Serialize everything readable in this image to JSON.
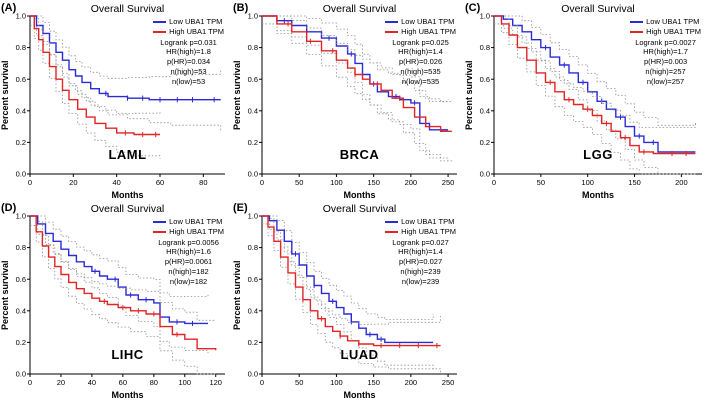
{
  "colors": {
    "low_line": "#2b2bd5",
    "high_line": "#e32424",
    "ci_line": "#909090",
    "axis": "#000000"
  },
  "chart_data": [
    {
      "type": "line",
      "subtype": "kaplan-meier-step",
      "panel_label": "(A)",
      "title": "Overall Survival",
      "cancer": "LAML",
      "xlabel": "Months",
      "ylabel": "Percent survival",
      "xlim": [
        0,
        90
      ],
      "xticks": [
        0,
        20,
        40,
        60,
        80
      ],
      "ylim": [
        0,
        1
      ],
      "yticks": [
        0,
        0.2,
        0.4,
        0.6,
        0.8,
        1
      ],
      "ci_base": 0.06,
      "ci_grow": 0.14,
      "legend_position": "top-right",
      "stats": [
        "Logrank p=0.031",
        "HR(high)=1.8",
        "p(HR)=0.034",
        "n(high)=53",
        "n(low)=53"
      ],
      "series": [
        {
          "name": "Low UBA1 TPM",
          "color_key": "low_line",
          "x": [
            0,
            3,
            6,
            9,
            12,
            15,
            18,
            21,
            24,
            28,
            32,
            36,
            45,
            55,
            65,
            88
          ],
          "y": [
            1.0,
            0.94,
            0.89,
            0.83,
            0.77,
            0.72,
            0.66,
            0.62,
            0.58,
            0.54,
            0.51,
            0.49,
            0.48,
            0.47,
            0.47,
            0.47
          ],
          "censors": [
            35,
            45,
            52,
            60,
            68,
            75,
            85
          ]
        },
        {
          "name": "High UBA1 TPM",
          "color_key": "high_line",
          "x": [
            0,
            2,
            4,
            6,
            9,
            12,
            15,
            18,
            22,
            26,
            30,
            35,
            40,
            48,
            60
          ],
          "y": [
            1.0,
            0.92,
            0.85,
            0.77,
            0.68,
            0.6,
            0.53,
            0.47,
            0.41,
            0.36,
            0.32,
            0.29,
            0.26,
            0.25,
            0.25
          ],
          "censors": [
            44,
            52,
            58
          ]
        }
      ]
    },
    {
      "type": "line",
      "subtype": "kaplan-meier-step",
      "panel_label": "(B)",
      "title": "Overall Survival",
      "cancer": "BRCA",
      "xlabel": "Months",
      "ylabel": "Percent survival",
      "xlim": [
        0,
        262
      ],
      "xticks": [
        0,
        50,
        100,
        150,
        200,
        250
      ],
      "ylim": [
        0,
        1
      ],
      "yticks": [
        0,
        0.2,
        0.4,
        0.6,
        0.8,
        1
      ],
      "ci_base": 0.05,
      "ci_grow": 0.15,
      "legend_position": "top-right",
      "stats": [
        "Logrank p=0.025",
        "HR(high)=1.4",
        "p(HR)=0.026",
        "n(high)=535",
        "n(low)=535"
      ],
      "series": [
        {
          "name": "Low UBA1 TPM",
          "color_key": "low_line",
          "x": [
            0,
            20,
            40,
            60,
            80,
            100,
            115,
            125,
            135,
            145,
            155,
            170,
            185,
            200,
            212,
            225,
            250
          ],
          "y": [
            1.0,
            0.97,
            0.94,
            0.9,
            0.86,
            0.81,
            0.76,
            0.7,
            0.63,
            0.57,
            0.52,
            0.49,
            0.47,
            0.45,
            0.32,
            0.28,
            0.28
          ],
          "censors": [
            30,
            60,
            90,
            120,
            150,
            180,
            205
          ]
        },
        {
          "name": "High UBA1 TPM",
          "color_key": "high_line",
          "x": [
            0,
            20,
            40,
            60,
            80,
            100,
            115,
            125,
            135,
            145,
            160,
            175,
            190,
            205,
            220,
            240,
            255
          ],
          "y": [
            1.0,
            0.95,
            0.9,
            0.84,
            0.78,
            0.72,
            0.67,
            0.63,
            0.6,
            0.57,
            0.53,
            0.48,
            0.42,
            0.36,
            0.3,
            0.27,
            0.27
          ],
          "censors": [
            35,
            65,
            95,
            125,
            155,
            185
          ]
        }
      ]
    },
    {
      "type": "line",
      "subtype": "kaplan-meier-step",
      "panel_label": "(C)",
      "title": "Overall Survival",
      "cancer": "LGG",
      "xlabel": "Months",
      "ylabel": "Percent survival",
      "xlim": [
        0,
        222
      ],
      "xticks": [
        0,
        50,
        100,
        150,
        200
      ],
      "ylim": [
        0,
        1
      ],
      "yticks": [
        0,
        0.2,
        0.4,
        0.6,
        0.8,
        1
      ],
      "ci_base": 0.05,
      "ci_grow": 0.15,
      "legend_position": "top-right",
      "stats": [
        "Logrank p=0.0027",
        "HR(high)=1.7",
        "p(HR)=0.003",
        "n(high)=257",
        "n(low)=257"
      ],
      "series": [
        {
          "name": "Low UBA1 TPM",
          "color_key": "low_line",
          "x": [
            0,
            10,
            20,
            30,
            40,
            50,
            60,
            70,
            80,
            90,
            100,
            110,
            120,
            130,
            140,
            150,
            160,
            175,
            215
          ],
          "y": [
            1.0,
            0.98,
            0.94,
            0.9,
            0.85,
            0.8,
            0.74,
            0.69,
            0.64,
            0.58,
            0.52,
            0.46,
            0.41,
            0.36,
            0.3,
            0.24,
            0.2,
            0.14,
            0.14
          ],
          "censors": [
            55,
            75,
            95,
            115,
            135,
            155,
            170
          ]
        },
        {
          "name": "High UBA1 TPM",
          "color_key": "high_line",
          "x": [
            0,
            8,
            16,
            25,
            35,
            45,
            55,
            65,
            75,
            85,
            95,
            105,
            115,
            125,
            135,
            145,
            155,
            170,
            215
          ],
          "y": [
            1.0,
            0.95,
            0.88,
            0.8,
            0.72,
            0.64,
            0.58,
            0.52,
            0.47,
            0.44,
            0.41,
            0.37,
            0.32,
            0.27,
            0.23,
            0.18,
            0.14,
            0.13,
            0.13
          ],
          "censors": [
            60,
            80,
            100,
            120,
            140,
            160,
            190,
            205
          ]
        }
      ]
    },
    {
      "type": "line",
      "subtype": "kaplan-meier-step",
      "panel_label": "(D)",
      "title": "Overall Survival",
      "cancer": "LIHC",
      "xlabel": "Months",
      "ylabel": "Percent survival",
      "xlim": [
        0,
        126
      ],
      "xticks": [
        0,
        20,
        40,
        60,
        80,
        100,
        120
      ],
      "ylim": [
        0,
        1
      ],
      "yticks": [
        0,
        0.2,
        0.4,
        0.6,
        0.8,
        1
      ],
      "ci_base": 0.06,
      "ci_grow": 0.14,
      "legend_position": "top-right",
      "stats": [
        "Logrank p=0.0056",
        "HR(high)=1.6",
        "p(HR)=0.0061",
        "n(high)=182",
        "n(low)=182"
      ],
      "series": [
        {
          "name": "Low UBA1 TPM",
          "color_key": "low_line",
          "x": [
            0,
            5,
            10,
            15,
            20,
            25,
            30,
            35,
            40,
            45,
            50,
            57,
            62,
            70,
            80,
            84,
            90,
            100,
            115
          ],
          "y": [
            1.0,
            0.95,
            0.89,
            0.84,
            0.79,
            0.75,
            0.71,
            0.68,
            0.65,
            0.62,
            0.6,
            0.55,
            0.5,
            0.47,
            0.45,
            0.36,
            0.33,
            0.32,
            0.32
          ],
          "censors": [
            42,
            55,
            65,
            75,
            95,
            105
          ]
        },
        {
          "name": "High UBA1 TPM",
          "color_key": "high_line",
          "x": [
            0,
            4,
            8,
            12,
            16,
            20,
            25,
            30,
            35,
            40,
            45,
            50,
            57,
            65,
            75,
            84,
            92,
            100,
            108,
            120
          ],
          "y": [
            1.0,
            0.9,
            0.81,
            0.74,
            0.68,
            0.63,
            0.58,
            0.54,
            0.51,
            0.48,
            0.46,
            0.44,
            0.42,
            0.4,
            0.38,
            0.3,
            0.25,
            0.22,
            0.16,
            0.15
          ],
          "censors": [
            48,
            60,
            70,
            80,
            95
          ]
        }
      ]
    },
    {
      "type": "line",
      "subtype": "kaplan-meier-step",
      "panel_label": "(E)",
      "title": "Overall Survival",
      "cancer": "LUAD",
      "xlabel": "Months",
      "ylabel": "Percent survival",
      "xlim": [
        0,
        262
      ],
      "xticks": [
        0,
        50,
        100,
        150,
        200,
        250
      ],
      "ylim": [
        0,
        1
      ],
      "yticks": [
        0,
        0.2,
        0.4,
        0.6,
        0.8,
        1
      ],
      "ci_base": 0.05,
      "ci_grow": 0.15,
      "legend_position": "top-right",
      "stats": [
        "Logrank p=0.027",
        "HR(high)=1.4",
        "p(HR)=0.027",
        "n(high)=239",
        "n(low)=239"
      ],
      "series": [
        {
          "name": "Low UBA1 TPM",
          "color_key": "low_line",
          "x": [
            0,
            10,
            20,
            30,
            40,
            50,
            60,
            70,
            80,
            90,
            100,
            110,
            120,
            130,
            140,
            155,
            165,
            230
          ],
          "y": [
            1.0,
            0.97,
            0.91,
            0.84,
            0.76,
            0.69,
            0.62,
            0.56,
            0.51,
            0.46,
            0.42,
            0.38,
            0.33,
            0.29,
            0.25,
            0.22,
            0.2,
            0.2
          ],
          "censors": [
            45,
            70,
            95,
            120,
            145,
            160
          ]
        },
        {
          "name": "High UBA1 TPM",
          "color_key": "high_line",
          "x": [
            0,
            8,
            16,
            25,
            35,
            45,
            55,
            65,
            75,
            85,
            95,
            105,
            115,
            130,
            150,
            170,
            240
          ],
          "y": [
            1.0,
            0.93,
            0.84,
            0.74,
            0.64,
            0.55,
            0.47,
            0.4,
            0.35,
            0.3,
            0.27,
            0.24,
            0.21,
            0.19,
            0.18,
            0.18,
            0.18
          ],
          "censors": [
            55,
            80,
            105,
            130,
            160,
            185,
            210,
            235
          ]
        }
      ]
    }
  ]
}
